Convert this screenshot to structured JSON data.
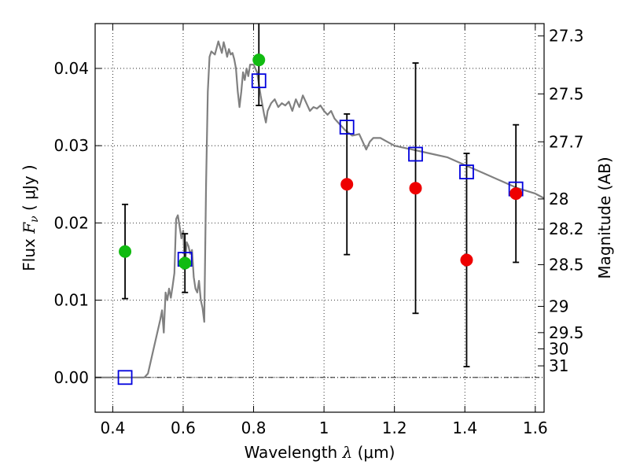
{
  "chart_data": {
    "type": "scatter",
    "xlabel": "Wavelength  λ (μm)",
    "ylabel": "Flux  F_ν  ( μJy )",
    "ylabel_parts": {
      "prefix": "Flux ",
      "symbol": "F",
      "subscript": "ν",
      "suffix": "  ( μJy )"
    },
    "xlabel_parts": {
      "prefix": "Wavelength  ",
      "symbol": "λ",
      "suffix": " (μm)"
    },
    "y2label": "Magnitude (AB)",
    "xlim": [
      0.35,
      1.625
    ],
    "ylim": [
      -0.0045,
      0.0458
    ],
    "grid": true,
    "x_ticks": [
      0.4,
      0.6,
      0.8,
      1.0,
      1.2,
      1.4,
      1.6
    ],
    "x_tick_labels": [
      "0.4",
      "0.6",
      "0.8",
      "1",
      "1.2",
      "1.4",
      "1.6"
    ],
    "y_ticks": [
      0.0,
      0.01,
      0.02,
      0.03,
      0.04
    ],
    "y_tick_labels": [
      "0.00",
      "0.01",
      "0.02",
      "0.03",
      "0.04"
    ],
    "y2_ticks": [
      {
        "label": "27.3",
        "flux": 0.0442
      },
      {
        "label": "27.5",
        "flux": 0.0367
      },
      {
        "label": "27.7",
        "flux": 0.0305
      },
      {
        "label": "28",
        "flux": 0.0231
      },
      {
        "label": "28.2",
        "flux": 0.0192
      },
      {
        "label": "28.5",
        "flux": 0.0146
      },
      {
        "label": "29",
        "flux": 0.0092
      },
      {
        "label": "29.5",
        "flux": 0.0058
      },
      {
        "label": "30",
        "flux": 0.0037
      },
      {
        "label": "31",
        "flux": 0.0015
      }
    ],
    "series": [
      {
        "kind": "line",
        "color": "#808080",
        "x": [
          0.35,
          0.45,
          0.49,
          0.5,
          0.515,
          0.525,
          0.535,
          0.54,
          0.545,
          0.55,
          0.555,
          0.56,
          0.565,
          0.57,
          0.575,
          0.58,
          0.585,
          0.59,
          0.595,
          0.6,
          0.605,
          0.61,
          0.615,
          0.62,
          0.625,
          0.63,
          0.635,
          0.64,
          0.645,
          0.65,
          0.655,
          0.66,
          0.665,
          0.67,
          0.675,
          0.68,
          0.685,
          0.69,
          0.7,
          0.71,
          0.715,
          0.72,
          0.725,
          0.73,
          0.735,
          0.74,
          0.745,
          0.75,
          0.755,
          0.76,
          0.765,
          0.77,
          0.775,
          0.78,
          0.785,
          0.79,
          0.8,
          0.81,
          0.82,
          0.83,
          0.835,
          0.84,
          0.85,
          0.86,
          0.87,
          0.88,
          0.89,
          0.9,
          0.91,
          0.92,
          0.93,
          0.94,
          0.95,
          0.96,
          0.97,
          0.98,
          0.99,
          1.0,
          1.01,
          1.02,
          1.03,
          1.04,
          1.05,
          1.06,
          1.08,
          1.1,
          1.11,
          1.12,
          1.13,
          1.14,
          1.16,
          1.18,
          1.2,
          1.25,
          1.3,
          1.35,
          1.4,
          1.45,
          1.5,
          1.55,
          1.6,
          1.625
        ],
        "y": [
          0.0,
          0.0,
          0.0,
          0.0005,
          0.0035,
          0.0055,
          0.0075,
          0.0087,
          0.0058,
          0.011,
          0.01,
          0.0115,
          0.0103,
          0.0118,
          0.0135,
          0.0205,
          0.021,
          0.0195,
          0.018,
          0.019,
          0.014,
          0.0175,
          0.017,
          0.016,
          0.0165,
          0.013,
          0.0115,
          0.011,
          0.0125,
          0.01,
          0.009,
          0.0072,
          0.025,
          0.037,
          0.0415,
          0.0422,
          0.042,
          0.0418,
          0.0435,
          0.042,
          0.0434,
          0.0425,
          0.0415,
          0.0425,
          0.0418,
          0.042,
          0.0412,
          0.04,
          0.037,
          0.035,
          0.037,
          0.0395,
          0.0385,
          0.04,
          0.039,
          0.0405,
          0.0405,
          0.0395,
          0.0365,
          0.034,
          0.033,
          0.0345,
          0.0355,
          0.036,
          0.035,
          0.0355,
          0.0352,
          0.0357,
          0.0345,
          0.036,
          0.035,
          0.0365,
          0.0355,
          0.0345,
          0.035,
          0.0348,
          0.0352,
          0.0345,
          0.034,
          0.0345,
          0.0335,
          0.033,
          0.0325,
          0.032,
          0.0313,
          0.0315,
          0.0305,
          0.0295,
          0.0305,
          0.031,
          0.031,
          0.0305,
          0.03,
          0.0295,
          0.029,
          0.0285,
          0.0275,
          0.0265,
          0.0255,
          0.0245,
          0.0238,
          0.0232
        ]
      },
      {
        "kind": "model",
        "marker": "square",
        "color": "#0000dd",
        "x": [
          0.435,
          0.605,
          0.815,
          1.065,
          1.26,
          1.405,
          1.545
        ],
        "y": [
          0.0,
          0.0153,
          0.0384,
          0.0324,
          0.0289,
          0.0266,
          0.0244
        ]
      },
      {
        "kind": "detection",
        "marker": "circle",
        "color": "#11bb11",
        "x": [
          0.435,
          0.605,
          0.815
        ],
        "y": [
          0.0163,
          0.0148,
          0.0411
        ],
        "yerr": [
          0.0061,
          0.0038,
          0.0059
        ]
      },
      {
        "kind": "upper",
        "marker": "circle",
        "color": "#ee0000",
        "x": [
          1.065,
          1.26,
          1.405,
          1.545
        ],
        "y": [
          0.025,
          0.0245,
          0.0152,
          0.0238
        ],
        "yerr": [
          0.0091,
          0.0162,
          0.0138,
          0.0089
        ]
      }
    ]
  }
}
